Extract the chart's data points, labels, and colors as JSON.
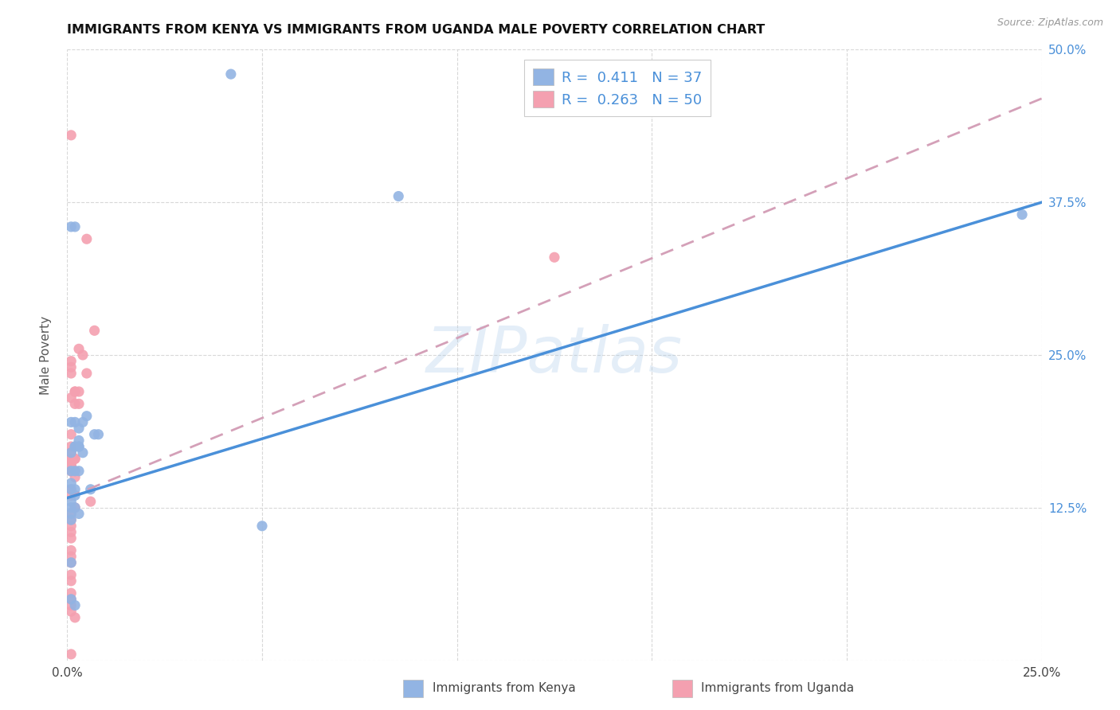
{
  "title": "IMMIGRANTS FROM KENYA VS IMMIGRANTS FROM UGANDA MALE POVERTY CORRELATION CHART",
  "source": "Source: ZipAtlas.com",
  "ylabel": "Male Poverty",
  "xlim": [
    0.0,
    0.25
  ],
  "ylim": [
    0.0,
    0.5
  ],
  "kenya_R": 0.411,
  "kenya_N": 37,
  "uganda_R": 0.263,
  "uganda_N": 50,
  "kenya_color": "#92b4e3",
  "uganda_color": "#f4a0b0",
  "kenya_line_color": "#4a90d9",
  "uganda_line_color": "#d4a0b8",
  "watermark": "ZIPatlas",
  "kenya_scatter_x": [
    0.002,
    0.001,
    0.003,
    0.005,
    0.008,
    0.002,
    0.006,
    0.001,
    0.002,
    0.004,
    0.003,
    0.007,
    0.001,
    0.002,
    0.085,
    0.001,
    0.003,
    0.001,
    0.002,
    0.003,
    0.004,
    0.002,
    0.001,
    0.003,
    0.001,
    0.002,
    0.002,
    0.001,
    0.003,
    0.001,
    0.001,
    0.001,
    0.001,
    0.245,
    0.05,
    0.042,
    0.002
  ],
  "kenya_scatter_y": [
    0.355,
    0.355,
    0.19,
    0.2,
    0.185,
    0.175,
    0.14,
    0.14,
    0.14,
    0.17,
    0.175,
    0.185,
    0.195,
    0.195,
    0.38,
    0.13,
    0.175,
    0.17,
    0.175,
    0.18,
    0.195,
    0.155,
    0.155,
    0.155,
    0.145,
    0.135,
    0.125,
    0.125,
    0.12,
    0.12,
    0.115,
    0.08,
    0.05,
    0.365,
    0.11,
    0.48,
    0.045
  ],
  "uganda_scatter_x": [
    0.001,
    0.005,
    0.003,
    0.007,
    0.001,
    0.002,
    0.001,
    0.001,
    0.001,
    0.002,
    0.003,
    0.002,
    0.001,
    0.002,
    0.003,
    0.004,
    0.005,
    0.001,
    0.001,
    0.001,
    0.002,
    0.001,
    0.001,
    0.001,
    0.001,
    0.002,
    0.001,
    0.001,
    0.002,
    0.001,
    0.001,
    0.006,
    0.002,
    0.001,
    0.001,
    0.001,
    0.001,
    0.001,
    0.001,
    0.001,
    0.001,
    0.001,
    0.001,
    0.001,
    0.001,
    0.001,
    0.001,
    0.002,
    0.001,
    0.125
  ],
  "uganda_scatter_y": [
    0.43,
    0.345,
    0.255,
    0.27,
    0.245,
    0.22,
    0.24,
    0.235,
    0.165,
    0.165,
    0.22,
    0.22,
    0.215,
    0.21,
    0.21,
    0.25,
    0.235,
    0.185,
    0.175,
    0.17,
    0.165,
    0.165,
    0.165,
    0.16,
    0.16,
    0.155,
    0.155,
    0.155,
    0.15,
    0.14,
    0.135,
    0.13,
    0.125,
    0.12,
    0.115,
    0.11,
    0.105,
    0.1,
    0.09,
    0.085,
    0.08,
    0.07,
    0.065,
    0.055,
    0.05,
    0.045,
    0.04,
    0.035,
    0.005,
    0.33
  ],
  "legend_label1": "R =  0.411   N = 37",
  "legend_label2": "R =  0.263   N = 50",
  "bottom_label1": "Immigrants from Kenya",
  "bottom_label2": "Immigrants from Uganda"
}
